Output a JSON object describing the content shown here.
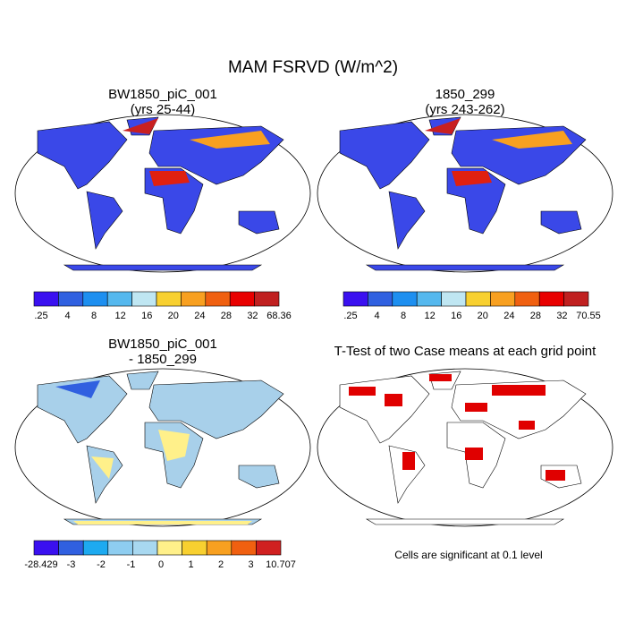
{
  "title": "MAM FSRVD (W/m^2)",
  "panels": [
    {
      "title": "BW1850_piC_001",
      "subtitle": "(yrs 25-44)",
      "colorbar": {
        "colors": [
          "#3a10f0",
          "#3060e0",
          "#1d8ff0",
          "#55b8ee",
          "#bfe6f2",
          "#f8d030",
          "#f8a020",
          "#f06010",
          "#e80000",
          "#c02020"
        ],
        "labels": [
          ".25",
          "4",
          "8",
          "12",
          "16",
          "20",
          "24",
          "28",
          "32",
          "68.36"
        ]
      }
    },
    {
      "title": "1850_299",
      "subtitle": "(yrs 243-262)",
      "colorbar": {
        "colors": [
          "#3a10f0",
          "#3060e0",
          "#1d8ff0",
          "#55b8ee",
          "#bfe6f2",
          "#f8d030",
          "#f8a020",
          "#f06010",
          "#e80000",
          "#c02020"
        ],
        "labels": [
          ".25",
          "4",
          "8",
          "12",
          "16",
          "20",
          "24",
          "28",
          "32",
          "70.55"
        ]
      }
    },
    {
      "title": "BW1850_piC_001",
      "subtitle": "- 1850_299",
      "colorbar": {
        "colors": [
          "#3a10f0",
          "#3060e0",
          "#1daaf0",
          "#8ecdf0",
          "#a8d8f0",
          "#fff08a",
          "#f8d030",
          "#f8a020",
          "#f06010",
          "#d02020"
        ],
        "labels": [
          "-28.429",
          "-3",
          "-2",
          "-1",
          "0",
          "1",
          "2",
          "3",
          "10.707"
        ]
      }
    },
    {
      "title": "T-Test of two Case means at each grid point"
    }
  ],
  "note": "Cells are significant at 0.1 level"
}
